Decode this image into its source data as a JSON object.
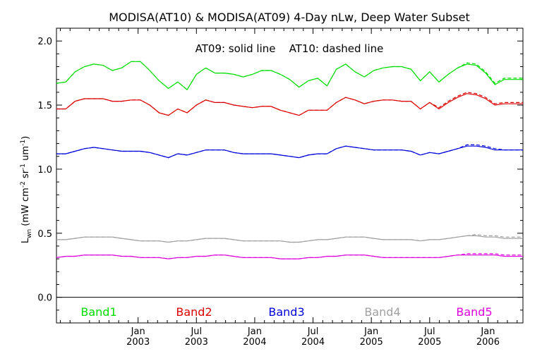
{
  "chart_data": {
    "type": "line",
    "title": "MODISA(AT10) & MODISA(AT09) 4-Day nLw, Deep Water Subset",
    "annotation": "AT09: solid line    AT10: dashed line",
    "ylabel": {
      "base": "L",
      "base_sub": "wn",
      "units_parts": [
        {
          "t": "(mW cm",
          "sup": false
        },
        {
          "t": "-2",
          "sup": true
        },
        {
          "t": " sr",
          "sup": false
        },
        {
          "t": "-1",
          "sup": true
        },
        {
          "t": " um",
          "sup": false
        },
        {
          "t": "-1",
          "sup": true
        },
        {
          "t": ")",
          "sup": false
        }
      ]
    },
    "ylim": [
      -0.2,
      2.1
    ],
    "xlim": [
      2002.3,
      2006.3
    ],
    "yticks": [
      {
        "v": 0.0,
        "label": "0.0"
      },
      {
        "v": 0.5,
        "label": "0.5"
      },
      {
        "v": 1.0,
        "label": "1.0"
      },
      {
        "v": 1.5,
        "label": "1.5"
      },
      {
        "v": 2.0,
        "label": "2.0"
      }
    ],
    "xticks": [
      {
        "v": 2003.0,
        "top": "Jan",
        "bottom": "2003"
      },
      {
        "v": 2003.5,
        "top": "Jul",
        "bottom": "2003"
      },
      {
        "v": 2004.0,
        "top": "Jan",
        "bottom": "2004"
      },
      {
        "v": 2004.5,
        "top": "Jul",
        "bottom": "2004"
      },
      {
        "v": 2005.0,
        "top": "Jan",
        "bottom": "2005"
      },
      {
        "v": 2005.5,
        "top": "Jul",
        "bottom": "2005"
      },
      {
        "v": 2006.0,
        "top": "Jan",
        "bottom": "2006"
      }
    ],
    "x": [
      2002.3,
      2002.38,
      2002.46,
      2002.54,
      2002.62,
      2002.7,
      2002.78,
      2002.86,
      2002.94,
      2003.02,
      2003.1,
      2003.18,
      2003.26,
      2003.34,
      2003.42,
      2003.5,
      2003.58,
      2003.66,
      2003.74,
      2003.82,
      2003.9,
      2003.98,
      2004.06,
      2004.14,
      2004.22,
      2004.3,
      2004.38,
      2004.46,
      2004.54,
      2004.62,
      2004.7,
      2004.78,
      2004.86,
      2004.94,
      2005.02,
      2005.1,
      2005.18,
      2005.26,
      2005.34,
      2005.42,
      2005.5,
      2005.58,
      2005.66,
      2005.74,
      2005.82,
      2005.9,
      2005.98,
      2006.06,
      2006.14,
      2006.22,
      2006.3
    ],
    "series": [
      {
        "name": "Band1",
        "color": "#00dd00",
        "solid": [
          1.67,
          1.68,
          1.76,
          1.8,
          1.82,
          1.81,
          1.77,
          1.79,
          1.84,
          1.84,
          1.77,
          1.69,
          1.63,
          1.68,
          1.62,
          1.74,
          1.79,
          1.75,
          1.75,
          1.74,
          1.72,
          1.74,
          1.77,
          1.77,
          1.74,
          1.7,
          1.64,
          1.69,
          1.71,
          1.65,
          1.78,
          1.82,
          1.76,
          1.72,
          1.77,
          1.79,
          1.8,
          1.8,
          1.78,
          1.69,
          1.76,
          1.68,
          1.74,
          1.79,
          1.82,
          1.81,
          1.75,
          1.66,
          1.7,
          1.7,
          1.7
        ],
        "dashed": [
          1.67,
          1.68,
          1.76,
          1.8,
          1.82,
          1.81,
          1.77,
          1.79,
          1.84,
          1.84,
          1.77,
          1.69,
          1.63,
          1.68,
          1.62,
          1.74,
          1.79,
          1.75,
          1.75,
          1.74,
          1.72,
          1.74,
          1.77,
          1.77,
          1.74,
          1.7,
          1.64,
          1.69,
          1.71,
          1.65,
          1.78,
          1.82,
          1.76,
          1.72,
          1.77,
          1.79,
          1.8,
          1.8,
          1.78,
          1.69,
          1.76,
          1.68,
          1.74,
          1.79,
          1.83,
          1.82,
          1.76,
          1.67,
          1.71,
          1.71,
          1.71
        ]
      },
      {
        "name": "Band2",
        "color": "#dd0000",
        "solid": [
          1.47,
          1.47,
          1.53,
          1.55,
          1.55,
          1.55,
          1.53,
          1.53,
          1.54,
          1.54,
          1.5,
          1.44,
          1.42,
          1.47,
          1.44,
          1.5,
          1.54,
          1.52,
          1.52,
          1.5,
          1.49,
          1.48,
          1.49,
          1.49,
          1.46,
          1.44,
          1.42,
          1.46,
          1.46,
          1.46,
          1.52,
          1.56,
          1.54,
          1.51,
          1.53,
          1.54,
          1.54,
          1.53,
          1.53,
          1.47,
          1.52,
          1.47,
          1.52,
          1.56,
          1.59,
          1.58,
          1.55,
          1.5,
          1.51,
          1.51,
          1.51
        ],
        "dashed": [
          1.47,
          1.47,
          1.53,
          1.55,
          1.55,
          1.55,
          1.53,
          1.53,
          1.54,
          1.54,
          1.5,
          1.44,
          1.42,
          1.47,
          1.44,
          1.5,
          1.54,
          1.52,
          1.52,
          1.5,
          1.49,
          1.48,
          1.49,
          1.49,
          1.46,
          1.44,
          1.42,
          1.46,
          1.46,
          1.46,
          1.52,
          1.56,
          1.54,
          1.51,
          1.53,
          1.54,
          1.54,
          1.53,
          1.53,
          1.47,
          1.52,
          1.48,
          1.53,
          1.57,
          1.6,
          1.59,
          1.56,
          1.51,
          1.52,
          1.52,
          1.52
        ]
      },
      {
        "name": "Band3",
        "color": "#0000dd",
        "solid": [
          1.12,
          1.12,
          1.14,
          1.16,
          1.17,
          1.16,
          1.15,
          1.14,
          1.14,
          1.14,
          1.13,
          1.11,
          1.09,
          1.12,
          1.11,
          1.13,
          1.15,
          1.15,
          1.15,
          1.13,
          1.12,
          1.12,
          1.12,
          1.12,
          1.11,
          1.1,
          1.09,
          1.11,
          1.12,
          1.12,
          1.16,
          1.18,
          1.17,
          1.16,
          1.15,
          1.15,
          1.15,
          1.15,
          1.14,
          1.11,
          1.13,
          1.12,
          1.14,
          1.16,
          1.18,
          1.18,
          1.17,
          1.15,
          1.15,
          1.15,
          1.15
        ],
        "dashed": [
          1.12,
          1.12,
          1.14,
          1.16,
          1.17,
          1.16,
          1.15,
          1.14,
          1.14,
          1.14,
          1.13,
          1.11,
          1.09,
          1.12,
          1.11,
          1.13,
          1.15,
          1.15,
          1.15,
          1.13,
          1.12,
          1.12,
          1.12,
          1.12,
          1.11,
          1.1,
          1.09,
          1.11,
          1.12,
          1.12,
          1.16,
          1.18,
          1.17,
          1.16,
          1.15,
          1.15,
          1.15,
          1.15,
          1.14,
          1.11,
          1.13,
          1.12,
          1.14,
          1.16,
          1.19,
          1.19,
          1.18,
          1.16,
          1.15,
          1.15,
          1.15
        ]
      },
      {
        "name": "Band4",
        "color": "#a0a0a0",
        "solid": [
          0.45,
          0.45,
          0.46,
          0.47,
          0.47,
          0.47,
          0.47,
          0.46,
          0.45,
          0.44,
          0.44,
          0.44,
          0.43,
          0.44,
          0.44,
          0.45,
          0.46,
          0.46,
          0.46,
          0.45,
          0.44,
          0.44,
          0.44,
          0.44,
          0.44,
          0.43,
          0.43,
          0.44,
          0.45,
          0.45,
          0.46,
          0.47,
          0.47,
          0.47,
          0.46,
          0.45,
          0.45,
          0.45,
          0.45,
          0.44,
          0.45,
          0.45,
          0.46,
          0.47,
          0.48,
          0.48,
          0.47,
          0.47,
          0.46,
          0.46,
          0.46
        ],
        "dashed": [
          0.45,
          0.45,
          0.46,
          0.47,
          0.47,
          0.47,
          0.47,
          0.46,
          0.45,
          0.44,
          0.44,
          0.44,
          0.43,
          0.44,
          0.44,
          0.45,
          0.46,
          0.46,
          0.46,
          0.45,
          0.44,
          0.44,
          0.44,
          0.44,
          0.44,
          0.43,
          0.43,
          0.44,
          0.45,
          0.45,
          0.46,
          0.47,
          0.47,
          0.47,
          0.46,
          0.45,
          0.45,
          0.45,
          0.45,
          0.44,
          0.45,
          0.45,
          0.46,
          0.47,
          0.48,
          0.49,
          0.48,
          0.48,
          0.47,
          0.47,
          0.47
        ]
      },
      {
        "name": "Band5",
        "color": "#dd00dd",
        "solid": [
          0.31,
          0.32,
          0.32,
          0.33,
          0.33,
          0.33,
          0.33,
          0.32,
          0.32,
          0.31,
          0.31,
          0.31,
          0.3,
          0.31,
          0.31,
          0.32,
          0.32,
          0.33,
          0.33,
          0.32,
          0.31,
          0.31,
          0.31,
          0.31,
          0.3,
          0.3,
          0.3,
          0.31,
          0.31,
          0.32,
          0.32,
          0.33,
          0.33,
          0.33,
          0.32,
          0.31,
          0.31,
          0.31,
          0.31,
          0.31,
          0.31,
          0.31,
          0.32,
          0.33,
          0.33,
          0.33,
          0.33,
          0.33,
          0.32,
          0.32,
          0.32
        ],
        "dashed": [
          0.31,
          0.32,
          0.32,
          0.33,
          0.33,
          0.33,
          0.33,
          0.32,
          0.32,
          0.31,
          0.31,
          0.31,
          0.3,
          0.31,
          0.31,
          0.32,
          0.32,
          0.33,
          0.33,
          0.32,
          0.31,
          0.31,
          0.31,
          0.31,
          0.3,
          0.3,
          0.3,
          0.31,
          0.31,
          0.32,
          0.32,
          0.33,
          0.33,
          0.33,
          0.32,
          0.31,
          0.31,
          0.31,
          0.31,
          0.31,
          0.31,
          0.31,
          0.32,
          0.33,
          0.34,
          0.34,
          0.34,
          0.34,
          0.33,
          0.33,
          0.33
        ]
      }
    ],
    "legend_placement": "bottom, inside plot below zero line",
    "grid": false
  }
}
